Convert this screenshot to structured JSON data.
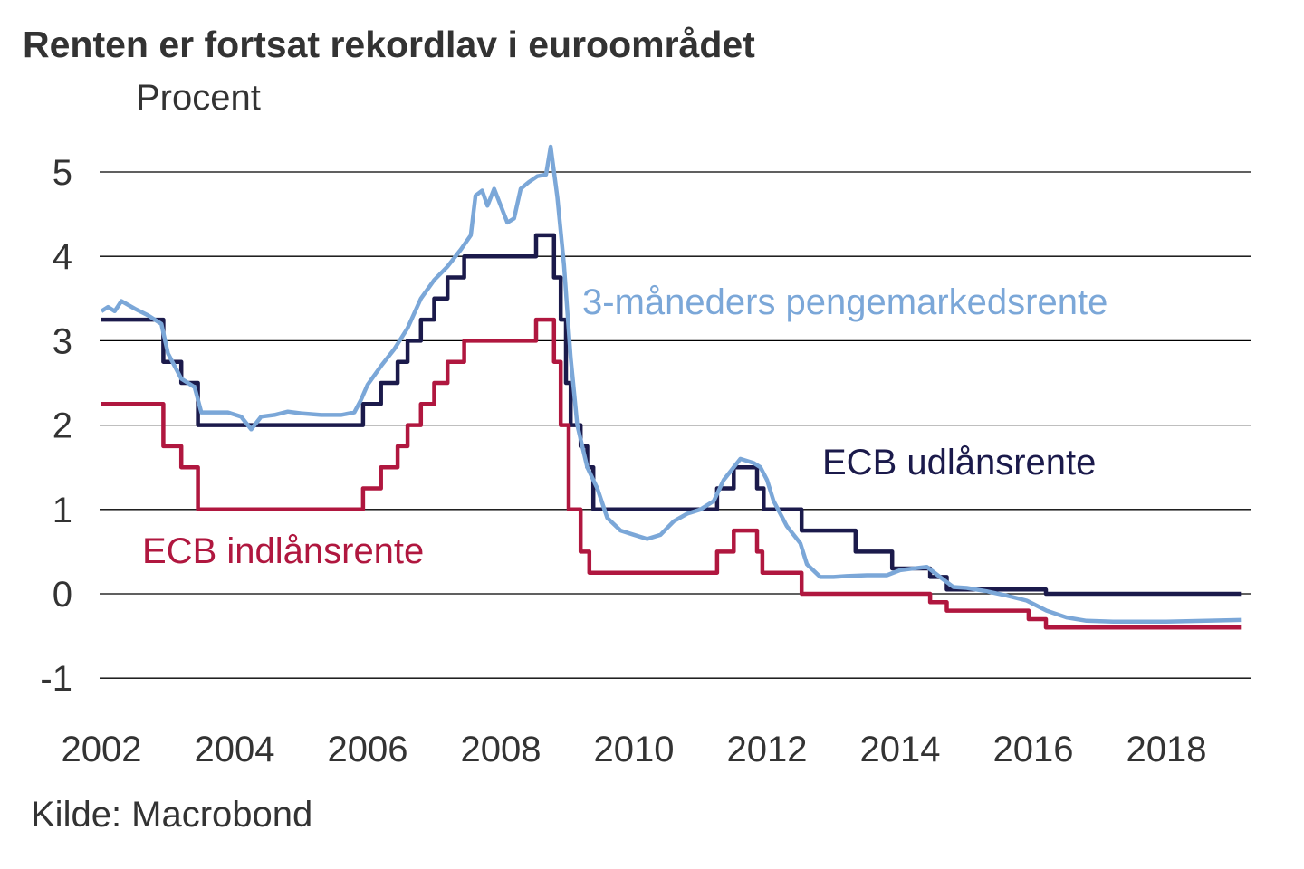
{
  "chart_data": {
    "type": "line",
    "title": "Renten er fortsat rekordlav i euroområdet",
    "ylabel": "Procent",
    "source": "Kilde: Macrobond",
    "xlim": [
      2002,
      2019.3
    ],
    "ylim": [
      -1,
      5
    ],
    "yticks": [
      5,
      4,
      3,
      2,
      1,
      0,
      -1
    ],
    "ytick_labels": [
      "5",
      "4",
      "3",
      "2",
      "1",
      "0",
      "-1"
    ],
    "xticks": [
      2002,
      2004,
      2006,
      2008,
      2010,
      2012,
      2014,
      2016,
      2018
    ],
    "xtick_labels": [
      "2002",
      "2004",
      "2006",
      "2008",
      "2010",
      "2012",
      "2014",
      "2016",
      "2018"
    ],
    "grid": "horizontal",
    "series": [
      {
        "name": "ECB udlånsrente",
        "color": "#1b1a4b",
        "step": true,
        "points": [
          [
            2002.0,
            3.25
          ],
          [
            2002.93,
            2.75
          ],
          [
            2003.2,
            2.5
          ],
          [
            2003.45,
            2.0
          ],
          [
            2005.93,
            2.25
          ],
          [
            2006.2,
            2.5
          ],
          [
            2006.45,
            2.75
          ],
          [
            2006.6,
            3.0
          ],
          [
            2006.8,
            3.25
          ],
          [
            2007.0,
            3.5
          ],
          [
            2007.2,
            3.75
          ],
          [
            2007.45,
            4.0
          ],
          [
            2008.53,
            4.25
          ],
          [
            2008.8,
            3.75
          ],
          [
            2008.9,
            3.25
          ],
          [
            2008.98,
            2.5
          ],
          [
            2009.05,
            2.0
          ],
          [
            2009.2,
            1.75
          ],
          [
            2009.3,
            1.5
          ],
          [
            2009.39,
            1.0
          ],
          [
            2011.25,
            1.25
          ],
          [
            2011.5,
            1.5
          ],
          [
            2011.85,
            1.25
          ],
          [
            2011.95,
            1.0
          ],
          [
            2012.52,
            0.75
          ],
          [
            2013.33,
            0.5
          ],
          [
            2013.88,
            0.3
          ],
          [
            2014.45,
            0.2
          ],
          [
            2014.7,
            0.05
          ],
          [
            2016.19,
            0.0
          ],
          [
            2019.12,
            0.0
          ]
        ]
      },
      {
        "name": "ECB indlånsrente",
        "color": "#b0173f",
        "step": true,
        "points": [
          [
            2002.0,
            2.25
          ],
          [
            2002.93,
            1.75
          ],
          [
            2003.2,
            1.5
          ],
          [
            2003.45,
            1.0
          ],
          [
            2005.93,
            1.25
          ],
          [
            2006.2,
            1.5
          ],
          [
            2006.45,
            1.75
          ],
          [
            2006.6,
            2.0
          ],
          [
            2006.8,
            2.25
          ],
          [
            2007.0,
            2.5
          ],
          [
            2007.2,
            2.75
          ],
          [
            2007.45,
            3.0
          ],
          [
            2008.53,
            3.25
          ],
          [
            2008.8,
            2.75
          ],
          [
            2008.9,
            2.0
          ],
          [
            2009.02,
            1.0
          ],
          [
            2009.2,
            0.5
          ],
          [
            2009.33,
            0.25
          ],
          [
            2011.25,
            0.5
          ],
          [
            2011.5,
            0.75
          ],
          [
            2011.85,
            0.5
          ],
          [
            2011.93,
            0.25
          ],
          [
            2012.52,
            0.0
          ],
          [
            2014.45,
            -0.1
          ],
          [
            2014.7,
            -0.2
          ],
          [
            2015.93,
            -0.3
          ],
          [
            2016.19,
            -0.4
          ],
          [
            2019.12,
            -0.4
          ]
        ]
      },
      {
        "name": "3-måneders pengemarkedsrente",
        "color": "#7ba7d8",
        "step": false,
        "points": [
          [
            2002.0,
            3.35
          ],
          [
            2002.1,
            3.4
          ],
          [
            2002.2,
            3.35
          ],
          [
            2002.3,
            3.47
          ],
          [
            2002.5,
            3.38
          ],
          [
            2002.7,
            3.3
          ],
          [
            2002.9,
            3.2
          ],
          [
            2003.0,
            2.85
          ],
          [
            2003.2,
            2.55
          ],
          [
            2003.4,
            2.45
          ],
          [
            2003.5,
            2.15
          ],
          [
            2003.7,
            2.15
          ],
          [
            2003.9,
            2.15
          ],
          [
            2004.1,
            2.1
          ],
          [
            2004.25,
            1.95
          ],
          [
            2004.4,
            2.1
          ],
          [
            2004.6,
            2.12
          ],
          [
            2004.8,
            2.16
          ],
          [
            2005.0,
            2.14
          ],
          [
            2005.3,
            2.12
          ],
          [
            2005.6,
            2.12
          ],
          [
            2005.8,
            2.15
          ],
          [
            2005.9,
            2.3
          ],
          [
            2006.0,
            2.48
          ],
          [
            2006.2,
            2.7
          ],
          [
            2006.4,
            2.9
          ],
          [
            2006.6,
            3.15
          ],
          [
            2006.8,
            3.5
          ],
          [
            2007.0,
            3.72
          ],
          [
            2007.2,
            3.88
          ],
          [
            2007.4,
            4.08
          ],
          [
            2007.55,
            4.25
          ],
          [
            2007.62,
            4.72
          ],
          [
            2007.72,
            4.78
          ],
          [
            2007.8,
            4.6
          ],
          [
            2007.9,
            4.8
          ],
          [
            2008.0,
            4.6
          ],
          [
            2008.1,
            4.4
          ],
          [
            2008.2,
            4.45
          ],
          [
            2008.3,
            4.8
          ],
          [
            2008.42,
            4.88
          ],
          [
            2008.55,
            4.95
          ],
          [
            2008.68,
            4.97
          ],
          [
            2008.75,
            5.3
          ],
          [
            2008.85,
            4.7
          ],
          [
            2008.95,
            3.9
          ],
          [
            2009.05,
            2.8
          ],
          [
            2009.15,
            2.0
          ],
          [
            2009.3,
            1.5
          ],
          [
            2009.45,
            1.25
          ],
          [
            2009.6,
            0.9
          ],
          [
            2009.8,
            0.75
          ],
          [
            2010.0,
            0.7
          ],
          [
            2010.2,
            0.65
          ],
          [
            2010.4,
            0.7
          ],
          [
            2010.6,
            0.86
          ],
          [
            2010.8,
            0.95
          ],
          [
            2011.0,
            1.0
          ],
          [
            2011.2,
            1.1
          ],
          [
            2011.35,
            1.35
          ],
          [
            2011.5,
            1.5
          ],
          [
            2011.6,
            1.6
          ],
          [
            2011.8,
            1.55
          ],
          [
            2011.9,
            1.5
          ],
          [
            2012.0,
            1.35
          ],
          [
            2012.1,
            1.1
          ],
          [
            2012.3,
            0.8
          ],
          [
            2012.5,
            0.6
          ],
          [
            2012.6,
            0.35
          ],
          [
            2012.8,
            0.2
          ],
          [
            2013.0,
            0.2
          ],
          [
            2013.2,
            0.21
          ],
          [
            2013.5,
            0.22
          ],
          [
            2013.8,
            0.22
          ],
          [
            2014.0,
            0.28
          ],
          [
            2014.2,
            0.3
          ],
          [
            2014.4,
            0.32
          ],
          [
            2014.6,
            0.2
          ],
          [
            2014.8,
            0.08
          ],
          [
            2015.0,
            0.07
          ],
          [
            2015.3,
            0.03
          ],
          [
            2015.6,
            -0.02
          ],
          [
            2015.9,
            -0.08
          ],
          [
            2016.2,
            -0.2
          ],
          [
            2016.5,
            -0.28
          ],
          [
            2016.8,
            -0.32
          ],
          [
            2017.2,
            -0.33
          ],
          [
            2017.6,
            -0.33
          ],
          [
            2018.0,
            -0.33
          ],
          [
            2018.6,
            -0.32
          ],
          [
            2019.12,
            -0.31
          ]
        ]
      }
    ],
    "annotations": [
      {
        "text": "3-måneders pengemarkedsrente",
        "series": "3-måneders pengemarkedsrente"
      },
      {
        "text": "ECB udlånsrente",
        "series": "ECB udlånsrente"
      },
      {
        "text": "ECB indlånsrente",
        "series": "ECB indlånsrente"
      }
    ]
  }
}
